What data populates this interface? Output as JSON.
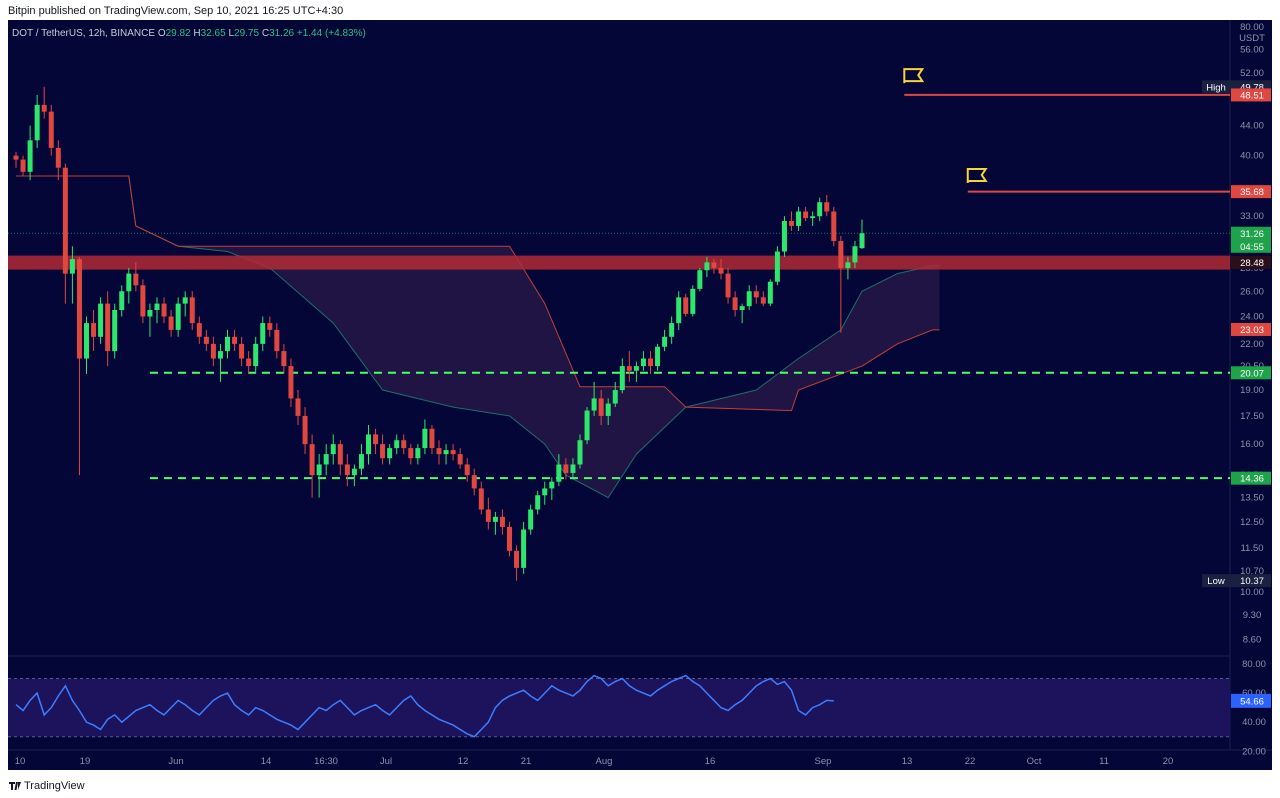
{
  "header": {
    "published": "Bitpin published on TradingView.com, Sep 10, 2021 16:25 UTC+4:30"
  },
  "legend": {
    "symbol": "DOT / TetherUS, 12h, BINANCE",
    "open_label": "O",
    "open": "29.82",
    "high_label": "H",
    "high": "32.65",
    "low_label": "L",
    "low": "29.75",
    "close_label": "C",
    "close": "31.26",
    "change": "+1.44 (+4.83%)"
  },
  "footer": {
    "brand": "TradingView"
  },
  "colors": {
    "background": "#030636",
    "up": "#2ee66b",
    "down": "#e0483f",
    "rsi": "#3f7dff",
    "cloud_bear": "#3a1a4a",
    "cloud_bull": "#0d2c5a",
    "dashed_support": "#4dff6a",
    "resistance_band": "#b22a35",
    "flag": "#f5d53a"
  },
  "chart_data": {
    "type": "candlestick",
    "y_axis": {
      "unit": "USDT",
      "scale": "log",
      "ylim": [
        8.4,
        60
      ],
      "ticks": [
        "56.00",
        "52.00",
        "48.00",
        "44.00",
        "40.00",
        "36.00",
        "33.00",
        "30.00",
        "28.00",
        "26.00",
        "24.00",
        "22.00",
        "20.50",
        "19.00",
        "17.50",
        "16.00",
        "14.50",
        "13.50",
        "12.50",
        "11.50",
        "10.70",
        "10.00",
        "9.30",
        "8.60"
      ],
      "top_label": "80.00"
    },
    "x_axis": {
      "labels": [
        "10",
        "19",
        "Jun",
        "14",
        "16:30",
        "Jul",
        "12",
        "21",
        "Aug",
        "16",
        "Sep",
        "13",
        "22",
        "Oct",
        "11",
        "20"
      ]
    },
    "price_markers": [
      {
        "label": "High",
        "value": "49.78",
        "kind": "high"
      },
      {
        "label": "",
        "value": "48.51",
        "kind": "red"
      },
      {
        "label": "",
        "value": "35.68",
        "kind": "red"
      },
      {
        "label": "",
        "value": "31.26",
        "kind": "current",
        "countdown": "04:55"
      },
      {
        "label": "",
        "value": "28.48",
        "kind": "dark"
      },
      {
        "label": "",
        "value": "23.03",
        "kind": "red"
      },
      {
        "label": "",
        "value": "20.07",
        "kind": "green"
      },
      {
        "label": "",
        "value": "14.36",
        "kind": "green"
      },
      {
        "label": "Low",
        "value": "10.37",
        "kind": "low"
      }
    ],
    "horizontal_levels": [
      {
        "value": 48.51,
        "style": "solid-red",
        "from": "Sep 13"
      },
      {
        "value": 35.68,
        "style": "solid-red",
        "from": "Sep 22"
      },
      {
        "value": 28.48,
        "style": "band-red",
        "from": "May 10"
      },
      {
        "value": 20.07,
        "style": "dashed-green",
        "from": "May 29"
      },
      {
        "value": 14.36,
        "style": "dashed-green",
        "from": "May 29"
      }
    ],
    "flags": [
      {
        "at": "Sep 13",
        "value": 51.5
      },
      {
        "at": "Sep 22",
        "value": 37.5
      }
    ],
    "candles": [
      [
        "May 10",
        40,
        40.5,
        38.5,
        39.5
      ],
      [
        "May 11",
        39.5,
        40,
        37.5,
        38
      ],
      [
        "May 12",
        38,
        44,
        37,
        42
      ],
      [
        "May 13",
        42,
        48.5,
        41,
        47
      ],
      [
        "May 14",
        47,
        49.78,
        45,
        46
      ],
      [
        "May 15",
        46,
        47,
        40,
        41
      ],
      [
        "May 16",
        41,
        42,
        37,
        38.5
      ],
      [
        "May 17",
        38.5,
        39,
        25,
        27.5
      ],
      [
        "May 18",
        27.5,
        30,
        25,
        28.8
      ],
      [
        "May 19",
        28.8,
        29,
        14.5,
        21
      ],
      [
        "May 20",
        21,
        24,
        20,
        23.5
      ],
      [
        "May 21",
        23.5,
        24.5,
        21.5,
        22.5
      ],
      [
        "May 22",
        22.5,
        25.5,
        22,
        25
      ],
      [
        "May 23",
        25,
        26,
        20.5,
        21.5
      ],
      [
        "May 24",
        21.5,
        25,
        21,
        24.5
      ],
      [
        "May 25",
        24.5,
        26.5,
        24,
        26
      ],
      [
        "May 26",
        26,
        28,
        25,
        27.5
      ],
      [
        "May 27",
        27.5,
        28.5,
        26,
        26.5
      ],
      [
        "May 28",
        26.5,
        27,
        23.5,
        24
      ],
      [
        "May 29",
        24,
        25,
        22.5,
        24.5
      ],
      [
        "May 30",
        24.5,
        25.5,
        23.5,
        25
      ],
      [
        "May 31",
        25,
        25.5,
        23.5,
        24
      ],
      [
        "Jun 1",
        24,
        24.5,
        22.5,
        23
      ],
      [
        "Jun 2",
        23,
        25.5,
        22.5,
        25
      ],
      [
        "Jun 3",
        25,
        26,
        24,
        25.5
      ],
      [
        "Jun 4",
        25.5,
        26,
        23,
        23.5
      ],
      [
        "Jun 5",
        23.5,
        24,
        22,
        22.5
      ],
      [
        "Jun 6",
        22.5,
        23,
        21.5,
        22
      ],
      [
        "Jun 7",
        22,
        22.5,
        20.5,
        21
      ],
      [
        "Jun 8",
        21,
        22,
        19.5,
        21.5
      ],
      [
        "Jun 9",
        21.5,
        23,
        21,
        22.5
      ],
      [
        "Jun 10",
        22.5,
        23,
        21.5,
        22
      ],
      [
        "Jun 11",
        22,
        22.5,
        20.5,
        21
      ],
      [
        "Jun 12",
        21,
        21.5,
        20,
        20.5
      ],
      [
        "Jun 13",
        20.5,
        22.5,
        20,
        22
      ],
      [
        "Jun 14",
        22,
        24,
        21.5,
        23.5
      ],
      [
        "Jun 15",
        23.5,
        24,
        22.5,
        23
      ],
      [
        "Jun 16",
        23,
        23.5,
        21,
        21.5
      ],
      [
        "Jun 17",
        21.5,
        22,
        20,
        20.5
      ],
      [
        "Jun 18",
        20.5,
        21,
        18,
        18.5
      ],
      [
        "Jun 19",
        18.5,
        19,
        17,
        17.5
      ],
      [
        "Jun 20",
        17.5,
        18,
        15.5,
        16
      ],
      [
        "Jun 21",
        16,
        16.5,
        13.5,
        14.5
      ],
      [
        "Jun 22",
        14.5,
        15.5,
        13.5,
        15
      ],
      [
        "Jun 23",
        15,
        16,
        14.5,
        15.5
      ],
      [
        "Jun 24",
        15.5,
        16.5,
        15,
        16
      ],
      [
        "Jun 25",
        16,
        16.2,
        14.5,
        15
      ],
      [
        "Jun 26",
        15,
        15.5,
        14,
        14.5
      ],
      [
        "Jun 27",
        14.5,
        15,
        14,
        14.8
      ],
      [
        "Jun 28",
        14.8,
        16,
        14.5,
        15.5
      ],
      [
        "Jun 29",
        15.5,
        17,
        15,
        16.5
      ],
      [
        "Jun 30",
        16.5,
        16.8,
        15.5,
        16
      ],
      [
        "Jul 1",
        16,
        16.5,
        15,
        15.3
      ],
      [
        "Jul 2",
        15.3,
        16,
        15,
        15.8
      ],
      [
        "Jul 3",
        15.8,
        16.5,
        15.5,
        16.2
      ],
      [
        "Jul 4",
        16.2,
        16.5,
        15.5,
        15.8
      ],
      [
        "Jul 5",
        15.8,
        16,
        15,
        15.3
      ],
      [
        "Jul 6",
        15.3,
        16,
        15,
        15.8
      ],
      [
        "Jul 7",
        15.8,
        17.3,
        15.5,
        16.8
      ],
      [
        "Jul 8",
        16.8,
        17,
        15.5,
        15.8
      ],
      [
        "Jul 9",
        15.8,
        16.2,
        15,
        15.5
      ],
      [
        "Jul 10",
        15.5,
        16,
        15,
        15.7
      ],
      [
        "Jul 11",
        15.7,
        16,
        15.2,
        15.5
      ],
      [
        "Jul 12",
        15.5,
        15.8,
        14.8,
        15
      ],
      [
        "Jul 13",
        15,
        15.3,
        14.2,
        14.5
      ],
      [
        "Jul 14",
        14.5,
        14.8,
        13.6,
        13.9
      ],
      [
        "Jul 15",
        13.9,
        14.2,
        12.8,
        13
      ],
      [
        "Jul 16",
        13,
        13.5,
        12.2,
        12.5
      ],
      [
        "Jul 17",
        12.5,
        12.9,
        12,
        12.7
      ],
      [
        "Jul 18",
        12.7,
        13,
        12,
        12.3
      ],
      [
        "Jul 19",
        12.3,
        12.5,
        11.2,
        11.4
      ],
      [
        "Jul 20",
        11.4,
        11.6,
        10.37,
        10.8
      ],
      [
        "Jul 21",
        10.8,
        12.5,
        10.6,
        12.2
      ],
      [
        "Jul 22",
        12.2,
        13.2,
        12,
        13
      ],
      [
        "Jul 23",
        13,
        13.8,
        12.8,
        13.6
      ],
      [
        "Jul 24",
        13.6,
        14.2,
        13.2,
        13.9
      ],
      [
        "Jul 25",
        13.9,
        14.4,
        13.4,
        14.2
      ],
      [
        "Jul 26",
        14.2,
        15.5,
        14,
        15
      ],
      [
        "Jul 27",
        15,
        15.3,
        14.3,
        14.6
      ],
      [
        "Jul 28",
        14.6,
        15.3,
        14.3,
        15
      ],
      [
        "Jul 29",
        15,
        16.5,
        14.8,
        16.2
      ],
      [
        "Jul 30",
        16.2,
        18,
        16,
        17.8
      ],
      [
        "Jul 31",
        17.8,
        19.5,
        17.5,
        18.5
      ],
      [
        "Aug 1",
        18.5,
        19,
        17,
        17.5
      ],
      [
        "Aug 2",
        17.5,
        18.5,
        17,
        18.2
      ],
      [
        "Aug 3",
        18.2,
        19.5,
        18,
        19
      ],
      [
        "Aug 4",
        19,
        21,
        18.8,
        20.5
      ],
      [
        "Aug 5",
        20.5,
        21.5,
        19.5,
        20.2
      ],
      [
        "Aug 6",
        20.2,
        20.8,
        19.5,
        20.5
      ],
      [
        "Aug 7",
        20.5,
        21.5,
        20.2,
        21
      ],
      [
        "Aug 8",
        21,
        21.5,
        20,
        20.5
      ],
      [
        "Aug 9",
        20.5,
        22,
        20.2,
        21.8
      ],
      [
        "Aug 10",
        21.8,
        23,
        21.5,
        22.5
      ],
      [
        "Aug 11",
        22.5,
        24,
        22,
        23.5
      ],
      [
        "Aug 12",
        23.5,
        26,
        23,
        25.5
      ],
      [
        "Aug 13",
        25.5,
        25.8,
        24,
        24.2
      ],
      [
        "Aug 14",
        24.2,
        26.5,
        24,
        26.2
      ],
      [
        "Aug 15",
        26.2,
        28,
        26,
        27.8
      ],
      [
        "Aug 16",
        27.8,
        29,
        27.2,
        28.5
      ],
      [
        "Aug 17",
        28.5,
        28.8,
        27.5,
        28
      ],
      [
        "Aug 18",
        28,
        28.8,
        27,
        27.5
      ],
      [
        "Aug 19",
        27.5,
        28,
        25,
        25.5
      ],
      [
        "Aug 20",
        25.5,
        26,
        24,
        24.5
      ],
      [
        "Aug 21",
        24.5,
        25,
        23.5,
        24.8
      ],
      [
        "Aug 22",
        24.8,
        26.5,
        24.5,
        26
      ],
      [
        "Aug 23",
        26,
        26.5,
        25,
        25.5
      ],
      [
        "Aug 24",
        25.5,
        26,
        24.8,
        25
      ],
      [
        "Aug 25",
        25,
        27,
        24.8,
        26.8
      ],
      [
        "Aug 26",
        26.8,
        30,
        26.5,
        29.5
      ],
      [
        "Aug 27",
        29.5,
        33,
        29,
        32.5
      ],
      [
        "Aug 28",
        32.5,
        33.5,
        31.5,
        32
      ],
      [
        "Aug 29",
        32,
        34,
        31.5,
        33.5
      ],
      [
        "Aug 30",
        33.5,
        34,
        32.5,
        32.8
      ],
      [
        "Aug 31",
        32.8,
        33.5,
        32,
        33
      ],
      [
        "Sep 1",
        33,
        35,
        32.5,
        34.5
      ],
      [
        "Sep 2",
        34.5,
        35.3,
        33,
        33.5
      ],
      [
        "Sep 3",
        33.5,
        34,
        30,
        30.5
      ],
      [
        "Sep 4",
        30.5,
        31,
        22.8,
        28
      ],
      [
        "Sep 5",
        28,
        29,
        27,
        28.5
      ],
      [
        "Sep 6",
        28.5,
        30.5,
        28,
        30
      ],
      [
        "Sep 7",
        29.82,
        32.65,
        29.75,
        31.26
      ]
    ],
    "ichimoku_cloud": {
      "span_a": [
        [
          0,
          37.5
        ],
        [
          16,
          37.5
        ],
        [
          17,
          32
        ],
        [
          23,
          30
        ],
        [
          30,
          29.5
        ],
        [
          36,
          28
        ],
        [
          45,
          23.5
        ],
        [
          52,
          19
        ],
        [
          62,
          18
        ],
        [
          70,
          17.5
        ],
        [
          75,
          16
        ],
        [
          78,
          14.5
        ],
        [
          84,
          13.5
        ],
        [
          88,
          15.5
        ],
        [
          95,
          18
        ],
        [
          105,
          19
        ],
        [
          111,
          21
        ],
        [
          117,
          23
        ],
        [
          120,
          26
        ],
        [
          125,
          27.5
        ],
        [
          130,
          28.2
        ],
        [
          131,
          28.2
        ]
      ],
      "span_b": [
        [
          0,
          37.5
        ],
        [
          16,
          37.5
        ],
        [
          17,
          32
        ],
        [
          23,
          30
        ],
        [
          30,
          30
        ],
        [
          45,
          30
        ],
        [
          60,
          30
        ],
        [
          70,
          30
        ],
        [
          75,
          25
        ],
        [
          80,
          19.2
        ],
        [
          92,
          19.2
        ],
        [
          95,
          18
        ],
        [
          110,
          17.8
        ],
        [
          111,
          19
        ],
        [
          120,
          20.5
        ],
        [
          125,
          22
        ],
        [
          130,
          23
        ],
        [
          131,
          23
        ]
      ]
    },
    "rsi": {
      "ylim": [
        25,
        80
      ],
      "ticks": [
        "80.00",
        "60.00",
        "40.00",
        "20.00"
      ],
      "current": "54.66",
      "values": [
        52,
        48,
        55,
        60,
        45,
        50,
        58,
        65,
        55,
        48,
        40,
        38,
        35,
        42,
        45,
        40,
        44,
        48,
        50,
        52,
        48,
        45,
        50,
        55,
        52,
        48,
        45,
        50,
        55,
        58,
        60,
        52,
        48,
        45,
        50,
        48,
        45,
        42,
        40,
        38,
        35,
        40,
        45,
        50,
        48,
        52,
        55,
        50,
        45,
        48,
        50,
        52,
        48,
        45,
        50,
        55,
        58,
        52,
        48,
        45,
        42,
        40,
        38,
        35,
        32,
        30,
        35,
        40,
        50,
        55,
        58,
        60,
        62,
        58,
        55,
        60,
        65,
        62,
        60,
        58,
        62,
        68,
        72,
        70,
        65,
        68,
        70,
        65,
        62,
        60,
        58,
        62,
        65,
        68,
        70,
        72,
        68,
        65,
        60,
        55,
        50,
        48,
        52,
        55,
        60,
        65,
        68,
        70,
        66,
        68,
        62,
        48,
        45,
        50,
        52,
        55,
        54.66
      ]
    }
  }
}
